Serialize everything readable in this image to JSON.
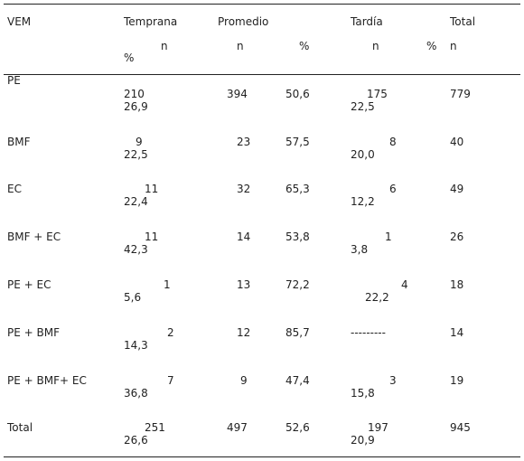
{
  "header": {
    "vem": "VEM",
    "temprana": "Temprana",
    "promedio": "Promedio",
    "tardia": "Tardía",
    "total": "Total",
    "temprana_n": "n",
    "temprana_pct": "%",
    "promedio_n": "n",
    "promedio_pct": "%",
    "tardia_n": "n",
    "tardia_pct": "%",
    "total_n": "n"
  },
  "rows": [
    {
      "label": "PE",
      "temprana_n": "210",
      "temprana_pct": "26,9",
      "promedio_n": "394",
      "promedio_pct": "50,6",
      "tardia_n": "175",
      "tardia_pct": "22,5",
      "total": "779"
    },
    {
      "label": "BMF",
      "temprana_n": "9",
      "temprana_pct": "22,5",
      "promedio_n": "23",
      "promedio_pct": "57,5",
      "tardia_n": "8",
      "tardia_pct": "20,0",
      "total": "40"
    },
    {
      "label": "EC",
      "temprana_n": "11",
      "temprana_pct": "22,4",
      "promedio_n": "32",
      "promedio_pct": "65,3",
      "tardia_n": "6",
      "tardia_pct": "12,2",
      "total": "49"
    },
    {
      "label": "BMF + EC",
      "temprana_n": "11",
      "temprana_pct": "42,3",
      "promedio_n": "14",
      "promedio_pct": "53,8",
      "tardia_n": "1",
      "tardia_pct": "3,8",
      "total": "26"
    },
    {
      "label": "PE + EC",
      "temprana_n": "1",
      "temprana_pct": "5,6",
      "promedio_n": "13",
      "promedio_pct": "72,2",
      "tardia_n": "4",
      "tardia_pct": "22,2",
      "total": "18"
    },
    {
      "label": "PE + BMF",
      "temprana_n": "2",
      "temprana_pct": "14,3",
      "promedio_n": "12",
      "promedio_pct": "85,7",
      "tardia_dash": "---------",
      "total": "14"
    },
    {
      "label": "PE + BMF+ EC",
      "temprana_n": "7",
      "temprana_pct": "36,8",
      "promedio_n": "9",
      "promedio_pct": "47,4",
      "tardia_n": "3",
      "tardia_pct": "15,8",
      "total": "19"
    },
    {
      "label": "Total",
      "temprana_n": "251",
      "temprana_pct": "26,6",
      "promedio_n": "497",
      "promedio_pct": "52,6",
      "tardia_n": "197",
      "tardia_pct": "20,9",
      "total": "945"
    }
  ]
}
